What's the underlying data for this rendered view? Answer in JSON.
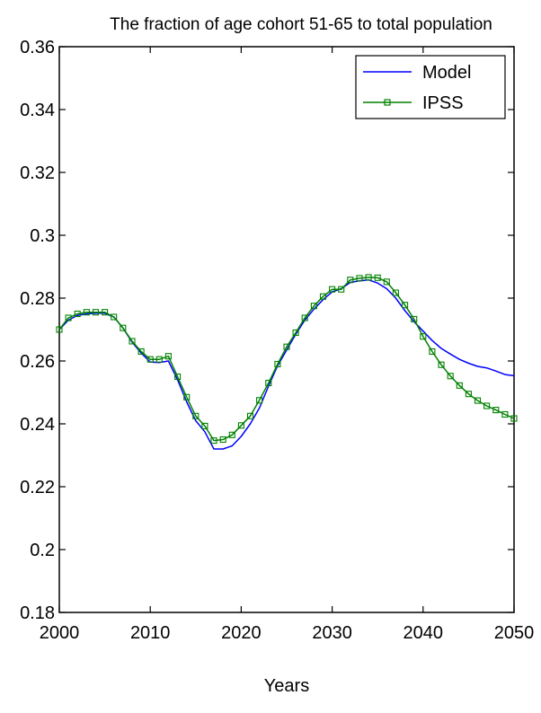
{
  "chart_data": {
    "type": "line",
    "title": "The fraction of age cohort 51-65 to total population",
    "xlabel": "Years",
    "ylabel": "",
    "xlim": [
      2000,
      2050
    ],
    "ylim": [
      0.18,
      0.36
    ],
    "xticks": [
      2000,
      2010,
      2020,
      2030,
      2040,
      2050
    ],
    "xtick_labels": [
      "2000",
      "2010",
      "2020",
      "2030",
      "2040",
      "2050"
    ],
    "yticks": [
      0.18,
      0.2,
      0.22,
      0.24,
      0.26,
      0.28,
      0.3,
      0.32,
      0.34,
      0.36
    ],
    "ytick_labels": [
      "0.18",
      "0.2",
      "0.22",
      "0.24",
      "0.26",
      "0.28",
      "0.3",
      "0.32",
      "0.34",
      "0.36"
    ],
    "grid": false,
    "legend_position": "top-right",
    "x": [
      2000,
      2001,
      2002,
      2003,
      2004,
      2005,
      2006,
      2007,
      2008,
      2009,
      2010,
      2011,
      2012,
      2013,
      2014,
      2015,
      2016,
      2017,
      2018,
      2019,
      2020,
      2021,
      2022,
      2023,
      2024,
      2025,
      2026,
      2027,
      2028,
      2029,
      2030,
      2031,
      2032,
      2033,
      2034,
      2035,
      2036,
      2037,
      2038,
      2039,
      2040,
      2041,
      2042,
      2043,
      2044,
      2045,
      2046,
      2047,
      2048,
      2049,
      2050
    ],
    "series": [
      {
        "name": "Model",
        "color": "#0000ff",
        "marker": "none",
        "values": [
          0.27,
          0.273,
          0.2745,
          0.275,
          0.2752,
          0.2752,
          0.274,
          0.2705,
          0.266,
          0.2625,
          0.2597,
          0.2595,
          0.26,
          0.254,
          0.247,
          0.241,
          0.2375,
          0.232,
          0.232,
          0.233,
          0.236,
          0.24,
          0.245,
          0.252,
          0.2585,
          0.2635,
          0.2685,
          0.273,
          0.2765,
          0.2795,
          0.282,
          0.283,
          0.285,
          0.2855,
          0.2858,
          0.2848,
          0.283,
          0.28,
          0.276,
          0.2725,
          0.2695,
          0.2665,
          0.264,
          0.2622,
          0.2605,
          0.2593,
          0.2583,
          0.2578,
          0.2568,
          0.2557,
          0.2553
        ]
      },
      {
        "name": "IPSS",
        "color": "#008000",
        "marker": "square",
        "values": [
          0.27,
          0.2737,
          0.275,
          0.2755,
          0.2755,
          0.2755,
          0.274,
          0.2705,
          0.2663,
          0.263,
          0.2605,
          0.2605,
          0.2615,
          0.255,
          0.2485,
          0.2425,
          0.2393,
          0.2347,
          0.235,
          0.2365,
          0.2395,
          0.2425,
          0.2475,
          0.253,
          0.259,
          0.2645,
          0.269,
          0.2737,
          0.2775,
          0.2805,
          0.2828,
          0.2828,
          0.2858,
          0.2863,
          0.2866,
          0.2865,
          0.2852,
          0.2817,
          0.2778,
          0.2733,
          0.2678,
          0.263,
          0.2588,
          0.2552,
          0.2522,
          0.2495,
          0.2474,
          0.2457,
          0.2444,
          0.243,
          0.2417
        ]
      }
    ]
  }
}
